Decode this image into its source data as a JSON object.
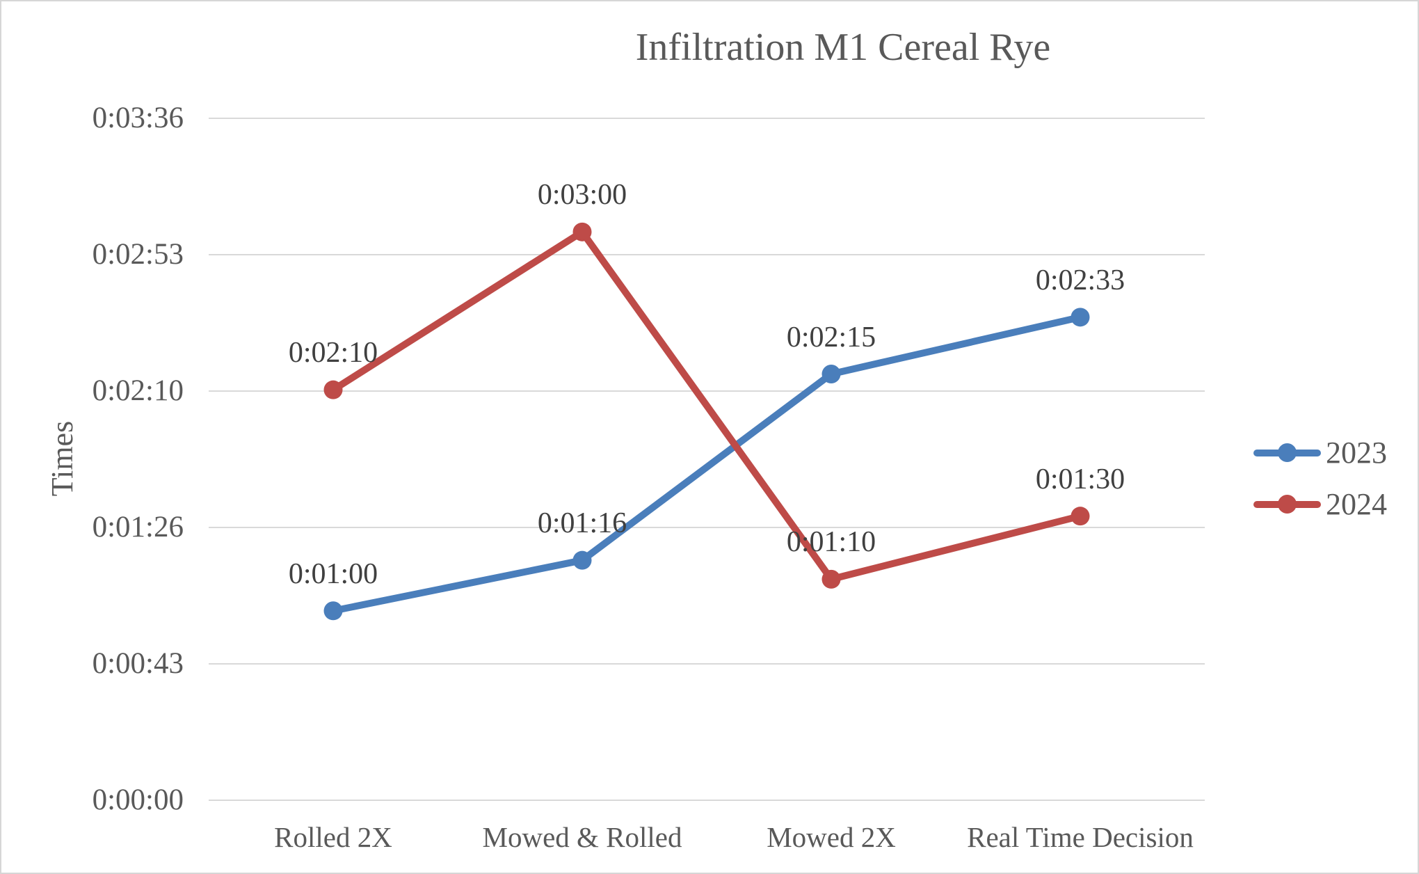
{
  "chart_data": {
    "type": "line",
    "title": "Infiltration M1 Cereal Rye",
    "ylabel": "Times",
    "xlabel": "",
    "categories": [
      "Rolled 2X",
      "Mowed & Rolled",
      "Mowed 2X",
      "Real Time Decision"
    ],
    "yticks": [
      {
        "label": "0:00:00",
        "seconds": 0
      },
      {
        "label": "0:00:43",
        "seconds": 43.2
      },
      {
        "label": "0:01:26",
        "seconds": 86.4
      },
      {
        "label": "0:02:10",
        "seconds": 129.6
      },
      {
        "label": "0:02:53",
        "seconds": 172.8
      },
      {
        "label": "0:03:36",
        "seconds": 216
      }
    ],
    "ylim_seconds": [
      0,
      216
    ],
    "grid": true,
    "gridline_color": "#d9d9d9",
    "legend_position": "right",
    "series": [
      {
        "name": "2023",
        "color": "#4a7ebb",
        "values_seconds": [
          60,
          76,
          135,
          153
        ],
        "labels": [
          "0:01:00",
          "0:01:16",
          "0:02:15",
          "0:02:33"
        ]
      },
      {
        "name": "2024",
        "color": "#be4b48",
        "values_seconds": [
          130,
          180,
          70,
          90
        ],
        "labels": [
          "0:02:10",
          "0:03:00",
          "0:01:10",
          "0:01:30"
        ]
      }
    ]
  }
}
